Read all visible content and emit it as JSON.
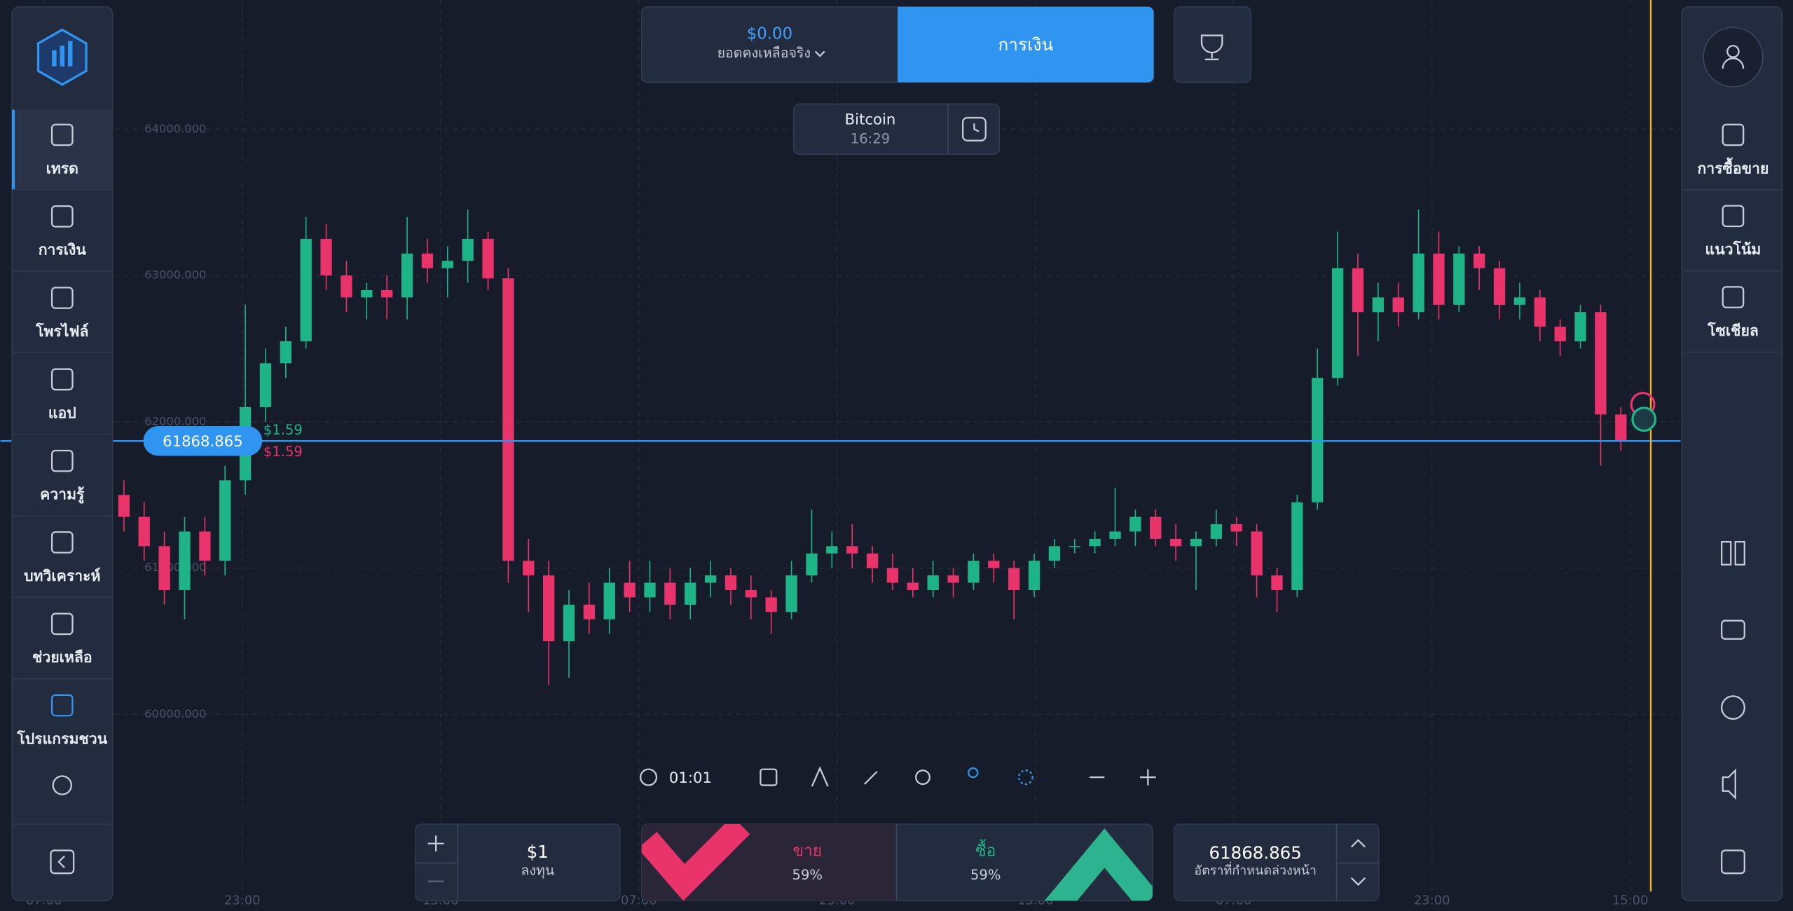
{
  "header": {
    "balance": "$0.00",
    "balance_label": "ยอดคงเหลือจริง",
    "finance_button": "การเงิน"
  },
  "asset": {
    "name": "Bitcoin",
    "time": "16:29"
  },
  "left_menu": [
    "เทรด",
    "การเงิน",
    "โพรไฟล์",
    "แอป",
    "ความรู้",
    "บทวิเคราะห์",
    "ช่วยเหลือ",
    "โปรแกรมชวน"
  ],
  "right_menu": [
    "การซื้อขาย",
    "แนวโน้ม",
    "โซเชียล"
  ],
  "chart": {
    "type": "candlestick",
    "ylim": [
      60000,
      64000
    ],
    "yticks": [
      {
        "value": 64000,
        "label": "64000.000"
      },
      {
        "value": 63000,
        "label": "63000.000"
      },
      {
        "value": 62000,
        "label": "62000.000"
      },
      {
        "value": 61000,
        "label": "61000.000"
      },
      {
        "value": 60000,
        "label": "60000.000"
      }
    ],
    "x_labels": [
      "07:00",
      "23:00",
      "15:00",
      "07:00",
      "23:00",
      "15:00",
      "07:00",
      "23:00",
      "15:00"
    ],
    "current_price": 61868.865,
    "payout_up": "$1.59",
    "payout_down": "$1.59",
    "up_color": "#1fb388",
    "down_color": "#e8336b",
    "candles": [
      [
        61500,
        61600,
        61250,
        61350
      ],
      [
        61350,
        61450,
        61050,
        61150
      ],
      [
        61150,
        61250,
        60750,
        60850
      ],
      [
        60850,
        61350,
        60650,
        61250
      ],
      [
        61250,
        61350,
        60950,
        61050
      ],
      [
        61050,
        61700,
        60950,
        61600
      ],
      [
        61600,
        62800,
        61500,
        62100
      ],
      [
        62100,
        62500,
        62000,
        62400
      ],
      [
        62400,
        62650,
        62300,
        62550
      ],
      [
        62550,
        63400,
        62500,
        63250
      ],
      [
        63250,
        63350,
        62900,
        63000
      ],
      [
        63000,
        63100,
        62750,
        62850
      ],
      [
        62850,
        62950,
        62700,
        62900
      ],
      [
        62900,
        63000,
        62700,
        62850
      ],
      [
        62850,
        63400,
        62700,
        63150
      ],
      [
        63150,
        63250,
        62950,
        63050
      ],
      [
        63050,
        63200,
        62850,
        63100
      ],
      [
        63100,
        63450,
        62950,
        63250
      ],
      [
        63250,
        63300,
        62900,
        62980
      ],
      [
        62980,
        63050,
        60900,
        61050
      ],
      [
        61050,
        61200,
        60700,
        60950
      ],
      [
        60950,
        61050,
        60200,
        60500
      ],
      [
        60500,
        60850,
        60250,
        60750
      ],
      [
        60750,
        60900,
        60550,
        60650
      ],
      [
        60650,
        61000,
        60550,
        60900
      ],
      [
        60900,
        61050,
        60700,
        60800
      ],
      [
        60800,
        61050,
        60700,
        60900
      ],
      [
        60900,
        61000,
        60650,
        60750
      ],
      [
        60750,
        61000,
        60650,
        60900
      ],
      [
        60900,
        61050,
        60800,
        60950
      ],
      [
        60950,
        61000,
        60750,
        60850
      ],
      [
        60850,
        60950,
        60650,
        60800
      ],
      [
        60800,
        60850,
        60550,
        60700
      ],
      [
        60700,
        61050,
        60650,
        60950
      ],
      [
        60950,
        61400,
        60900,
        61100
      ],
      [
        61100,
        61250,
        61000,
        61150
      ],
      [
        61150,
        61300,
        61000,
        61100
      ],
      [
        61100,
        61150,
        60900,
        61000
      ],
      [
        61000,
        61100,
        60850,
        60900
      ],
      [
        60900,
        61000,
        60800,
        60850
      ],
      [
        60850,
        61050,
        60800,
        60950
      ],
      [
        60950,
        61000,
        60800,
        60900
      ],
      [
        60900,
        61100,
        60850,
        61050
      ],
      [
        61050,
        61100,
        60900,
        61000
      ],
      [
        61000,
        61050,
        60650,
        60850
      ],
      [
        60850,
        61100,
        60800,
        61050
      ],
      [
        61050,
        61200,
        61000,
        61150
      ],
      [
        61150,
        61200,
        61100,
        61150
      ],
      [
        61150,
        61250,
        61100,
        61200
      ],
      [
        61200,
        61550,
        61150,
        61250
      ],
      [
        61250,
        61400,
        61150,
        61350
      ],
      [
        61350,
        61400,
        61150,
        61200
      ],
      [
        61200,
        61300,
        61050,
        61150
      ],
      [
        61150,
        61250,
        60850,
        61200
      ],
      [
        61200,
        61400,
        61150,
        61300
      ],
      [
        61300,
        61350,
        61150,
        61250
      ],
      [
        61250,
        61300,
        60800,
        60950
      ],
      [
        60950,
        61000,
        60700,
        60850
      ],
      [
        60850,
        61500,
        60800,
        61450
      ],
      [
        61450,
        62500,
        61400,
        62300
      ],
      [
        62300,
        63300,
        62250,
        63050
      ],
      [
        63050,
        63150,
        62450,
        62750
      ],
      [
        62750,
        62950,
        62550,
        62850
      ],
      [
        62850,
        62950,
        62650,
        62750
      ],
      [
        62750,
        63450,
        62700,
        63150
      ],
      [
        63150,
        63300,
        62700,
        62800
      ],
      [
        62800,
        63200,
        62750,
        63150
      ],
      [
        63150,
        63200,
        62900,
        63050
      ],
      [
        63050,
        63100,
        62700,
        62800
      ],
      [
        62800,
        62950,
        62700,
        62850
      ],
      [
        62850,
        62900,
        62550,
        62650
      ],
      [
        62650,
        62700,
        62450,
        62550
      ],
      [
        62550,
        62800,
        62500,
        62750
      ],
      [
        62750,
        62800,
        61700,
        62050
      ],
      [
        62050,
        62100,
        61800,
        61870
      ]
    ]
  },
  "toolbar": {
    "timer": "01:01"
  },
  "trade": {
    "amount": "$1",
    "amount_label": "ลงทุน",
    "sell": "ขาย",
    "sell_pct": "59%",
    "buy": "ซื้อ",
    "buy_pct": "59%",
    "strike": 61868.865,
    "strike_label": "อัตราที่กำหนดล่วงหน้า"
  }
}
